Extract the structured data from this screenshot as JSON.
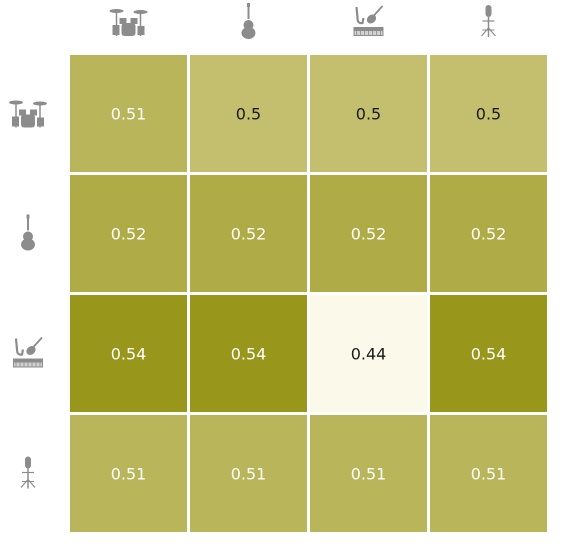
{
  "chart_data": {
    "type": "heatmap",
    "title": "",
    "xlabel": "",
    "ylabel": "",
    "row_icons": [
      "drum-kit-icon",
      "violin-icon",
      "instruments-keyboard-icon",
      "microphone-stand-icon"
    ],
    "col_icons": [
      "drum-kit-icon",
      "violin-icon",
      "instruments-keyboard-icon",
      "microphone-stand-icon"
    ],
    "values": [
      [
        0.51,
        0.5,
        0.5,
        0.5
      ],
      [
        0.52,
        0.52,
        0.52,
        0.52
      ],
      [
        0.54,
        0.54,
        0.44,
        0.54
      ],
      [
        0.51,
        0.51,
        0.51,
        0.51
      ]
    ],
    "labels": [
      [
        "0.51",
        "0.5",
        "0.5",
        "0.5"
      ],
      [
        "0.52",
        "0.52",
        "0.52",
        "0.52"
      ],
      [
        "0.54",
        "0.54",
        "0.44",
        "0.54"
      ],
      [
        "0.51",
        "0.51",
        "0.51",
        "0.51"
      ]
    ],
    "colorscale": {
      "low_color": "#fbfaea",
      "mid_color": "#c4bf6f",
      "high_color": "#99961c",
      "vmin": 0.44,
      "vmax": 0.54
    },
    "text_color_light": "#ffffff",
    "text_color_dark": "#1a1a1a",
    "icon_color": "#8c8c8c",
    "grid": false,
    "legend": "none"
  }
}
